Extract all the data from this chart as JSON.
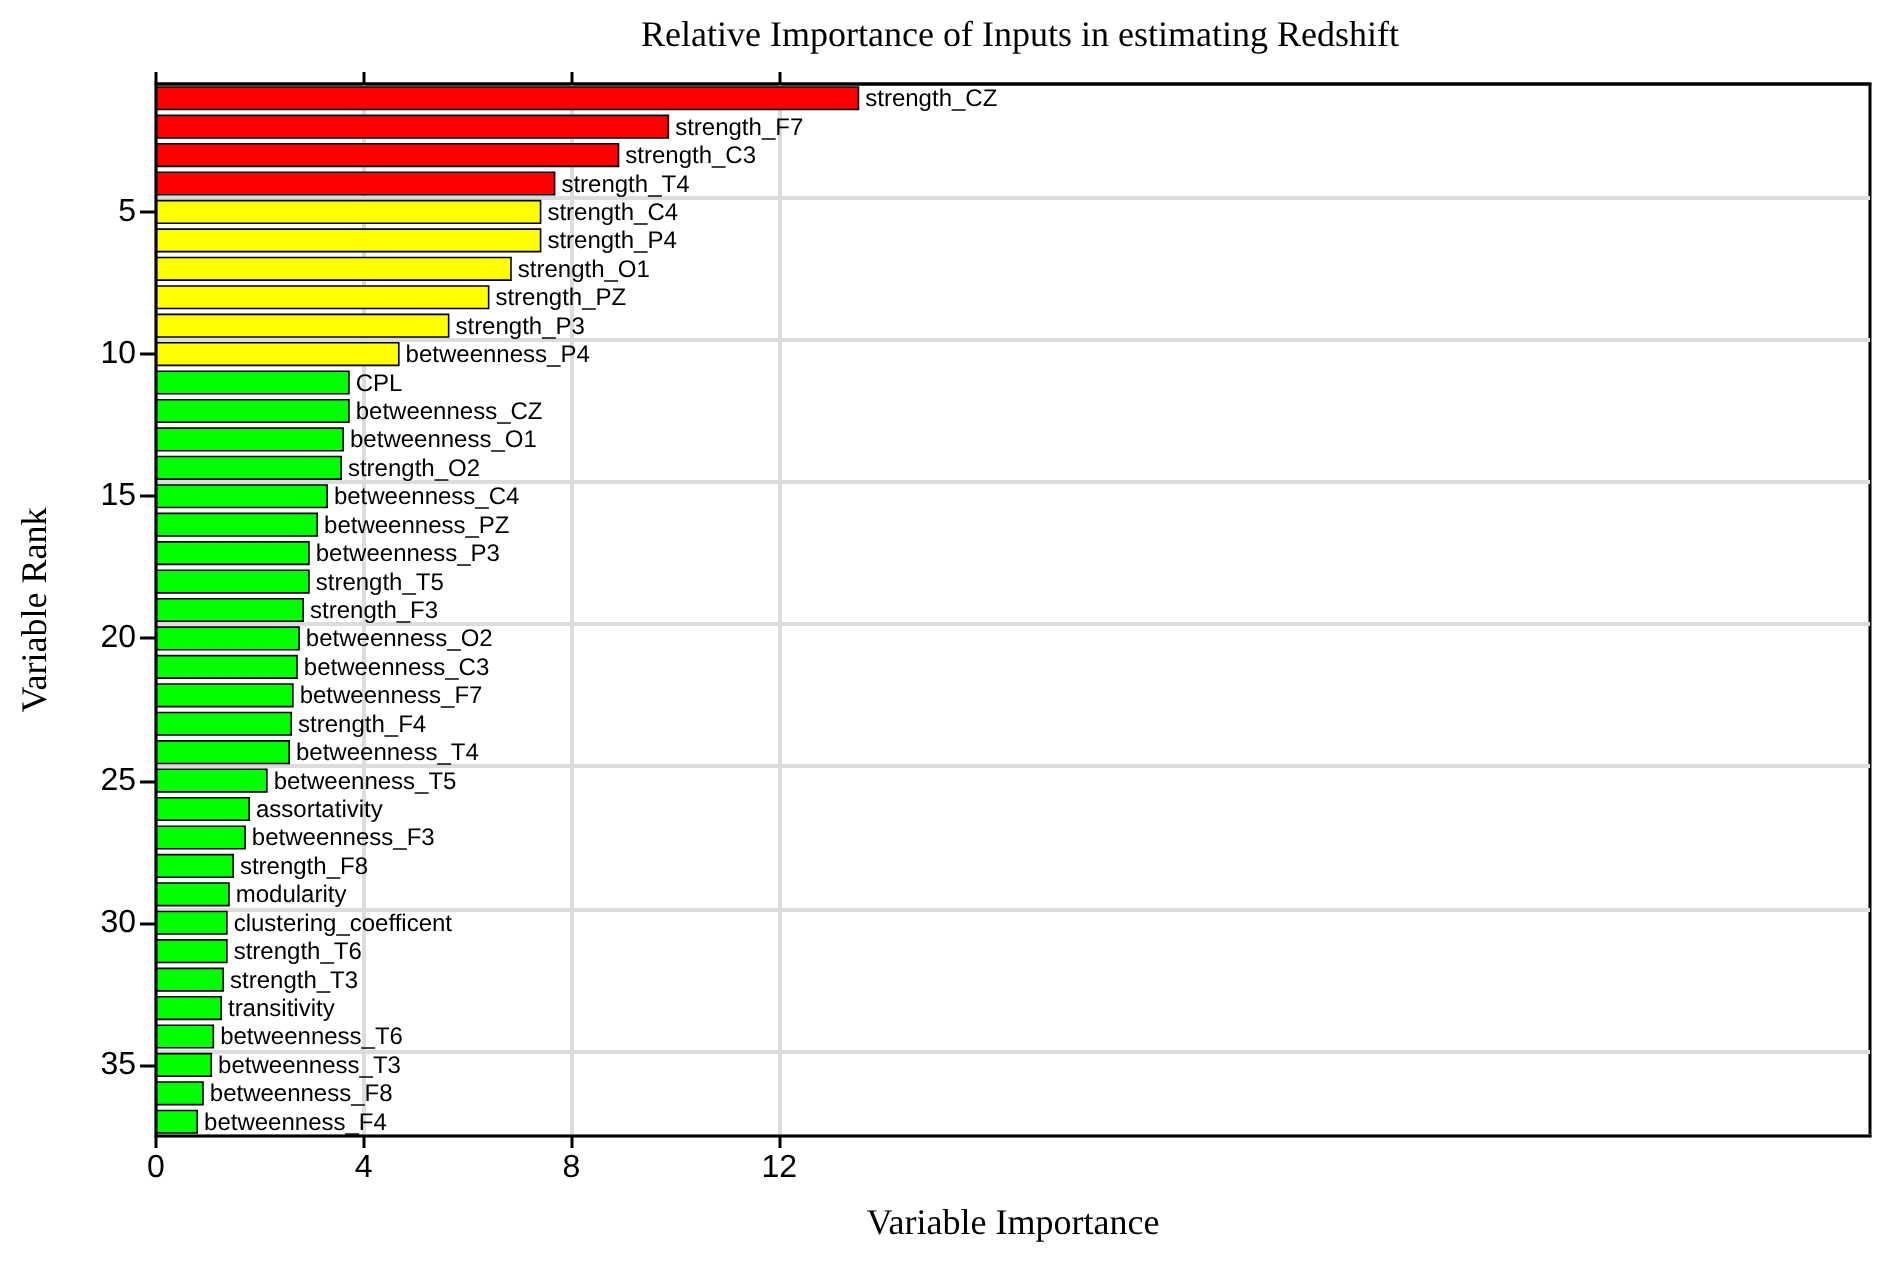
{
  "chart_data": {
    "type": "bar",
    "orientation": "horizontal",
    "title": "Relative Importance of Inputs in estimating Redshift",
    "xlabel": "Variable Importance",
    "ylabel": "Variable Rank",
    "categories": [
      null,
      null,
      null,
      null,
      "5",
      null,
      null,
      null,
      null,
      "10",
      null,
      null,
      null,
      null,
      "15",
      null,
      null,
      null,
      null,
      "20",
      null,
      null,
      null,
      null,
      "25",
      null,
      null,
      null,
      null,
      "30",
      null,
      null,
      null,
      null,
      "35",
      null,
      null
    ],
    "values": [
      13.54,
      9.88,
      8.92,
      7.69,
      7.42,
      7.42,
      6.85,
      6.42,
      5.65,
      4.69,
      3.73,
      3.73,
      3.62,
      3.58,
      3.31,
      3.12,
      2.96,
      2.96,
      2.85,
      2.77,
      2.73,
      2.65,
      2.62,
      2.58,
      2.15,
      1.81,
      1.73,
      1.5,
      1.42,
      1.38,
      1.38,
      1.31,
      1.27,
      1.12,
      1.08,
      0.92,
      0.81
    ],
    "value_labels": [
      "strength_CZ",
      "strength_F7",
      "strength_C3",
      "strength_T4",
      "strength_C4",
      "strength_P4",
      "strength_O1",
      "strength_PZ",
      "strength_P3",
      "betweenness_P4",
      "CPL",
      "betweenness_CZ",
      "betweenness_O1",
      "strength_O2",
      "betweenness_C4",
      "betweenness_PZ",
      "betweenness_P3",
      "strength_T5",
      "strength_F3",
      "betweenness_O2",
      "betweenness_C3",
      "betweenness_F7",
      "strength_F4",
      "betweenness_T4",
      "betweenness_T5",
      "assortativity",
      "betweenness_F3",
      "strength_F8",
      "modularity",
      "clustering_coefficent",
      "strength_T6",
      "strength_T3",
      "transitivity",
      "betweenness_T6",
      "betweenness_T3",
      "betweenness_F8",
      "betweenness_F4"
    ],
    "colors": [
      "#ff0000",
      "#ff0000",
      "#ff0000",
      "#ff0000",
      "#ffff00",
      "#ffff00",
      "#ffff00",
      "#ffff00",
      "#ffff00",
      "#ffff00",
      "#00ff00",
      "#00ff00",
      "#00ff00",
      "#00ff00",
      "#00ff00",
      "#00ff00",
      "#00ff00",
      "#00ff00",
      "#00ff00",
      "#00ff00",
      "#00ff00",
      "#00ff00",
      "#00ff00",
      "#00ff00",
      "#00ff00",
      "#00ff00",
      "#00ff00",
      "#00ff00",
      "#00ff00",
      "#00ff00",
      "#00ff00",
      "#00ff00",
      "#00ff00",
      "#00ff00",
      "#00ff00",
      "#00ff00",
      "#00ff00"
    ],
    "xlim": [
      0,
      33
    ],
    "xticks": [
      0,
      4,
      8,
      12
    ],
    "grid": true
  }
}
